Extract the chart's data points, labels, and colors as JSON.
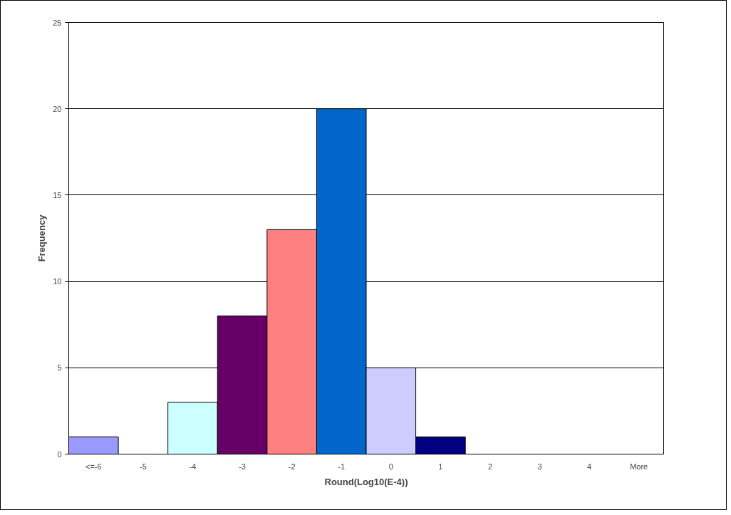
{
  "chart_data": {
    "type": "bar",
    "xlabel": "Round(Log10(E-4))",
    "ylabel": "Frequency",
    "categories": [
      "<=-6",
      "-5",
      "-4",
      "-3",
      "-2",
      "-1",
      "0",
      "1",
      "2",
      "3",
      "4",
      "More"
    ],
    "values": [
      1,
      0,
      3,
      8,
      13,
      20,
      5,
      1,
      0,
      0,
      0,
      0
    ],
    "colors": [
      "#9999ff",
      null,
      "#ccffff",
      "#660066",
      "#ff8080",
      "#0066cc",
      "#ccccff",
      "#000080",
      null,
      null,
      null,
      null
    ],
    "ylim": [
      0,
      25
    ],
    "yticks": [
      0,
      5,
      10,
      15,
      20,
      25
    ],
    "grid": "y"
  }
}
